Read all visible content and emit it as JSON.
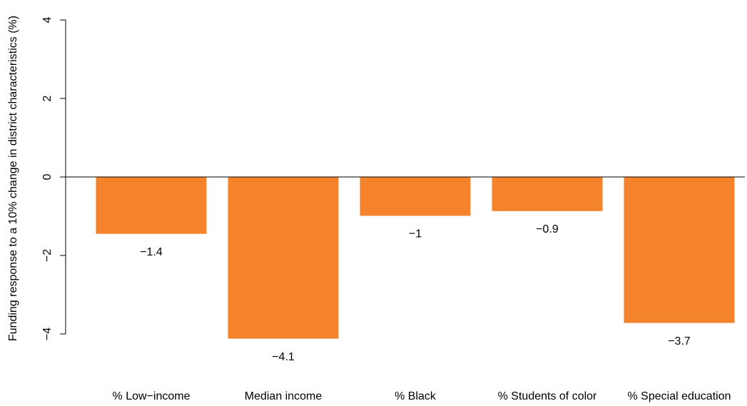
{
  "chart_data": {
    "type": "bar",
    "categories": [
      "% Low−income",
      "Median income",
      "% Black",
      "% Students of color",
      "% Special education"
    ],
    "values": [
      -1.45,
      -4.12,
      -0.99,
      -0.87,
      -3.72
    ],
    "data_labels": [
      "−1.4",
      "−4.1",
      "−1",
      "−0.9",
      "−3.7"
    ],
    "title": "",
    "xlabel": "",
    "ylabel": "Funding response to a 10% change in district characteristics (%)",
    "ylim": [
      -4,
      4
    ],
    "yticks": [
      -4,
      -2,
      0,
      2,
      4
    ],
    "ytick_labels": [
      "−4",
      "−2",
      "0",
      "2",
      "4"
    ],
    "grid": false,
    "legend": "none",
    "bar_color": "#F5832B",
    "axis_color": "#000000"
  }
}
